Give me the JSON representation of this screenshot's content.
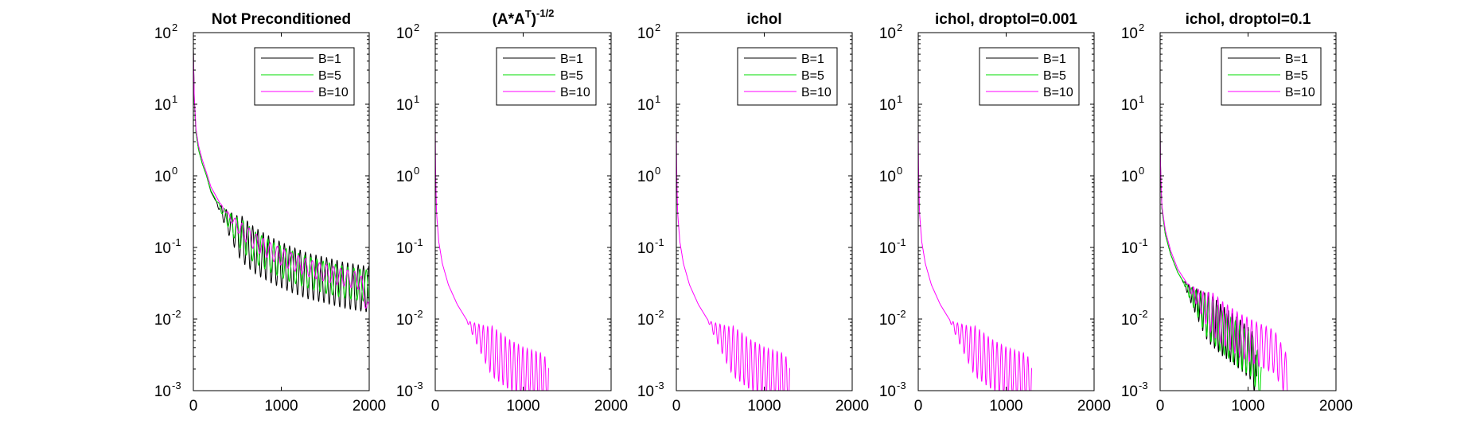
{
  "chart_data": [
    {
      "type": "line",
      "title": "Not Preconditioned",
      "title_sup": "",
      "yscale": "log",
      "xlim": [
        0,
        2000
      ],
      "ylim": [
        0.001,
        100
      ],
      "xticks": [
        0,
        1000,
        2000
      ],
      "xtick_labels": [
        "0",
        "1000",
        "2000"
      ],
      "ytick_exponents": [
        -3,
        -2,
        -1,
        0,
        1,
        2
      ],
      "ytick_labels": [
        "10",
        "10",
        "10",
        "10",
        "10",
        "10"
      ],
      "ytick_exp_labels": [
        "-3",
        "-2",
        "-1",
        "0",
        "1",
        "2"
      ],
      "legend": "top-right",
      "series": [
        {
          "name": "B=1",
          "color": "#000000",
          "points": [
            [
              0,
              60
            ],
            [
              10,
              12
            ],
            [
              30,
              4
            ],
            [
              60,
              2.3
            ],
            [
              100,
              1.5
            ],
            [
              150,
              1.0
            ],
            [
              200,
              0.6
            ],
            [
              300,
              0.35
            ],
            [
              400,
              0.22
            ],
            [
              500,
              0.15
            ],
            [
              700,
              0.09
            ],
            [
              900,
              0.065
            ],
            [
              1100,
              0.05
            ],
            [
              1300,
              0.04
            ],
            [
              1500,
              0.035
            ],
            [
              1700,
              0.03
            ],
            [
              1900,
              0.027
            ],
            [
              2000,
              0.026
            ]
          ],
          "osc": {
            "period": 60,
            "amp": 0.32,
            "start": 250
          }
        },
        {
          "name": "B=5",
          "color": "#00dd00",
          "points": [
            [
              0,
              60
            ],
            [
              10,
              12
            ],
            [
              30,
              4
            ],
            [
              60,
              2.3
            ],
            [
              100,
              1.5
            ],
            [
              150,
              1.0
            ],
            [
              200,
              0.62
            ],
            [
              300,
              0.37
            ],
            [
              400,
              0.24
            ],
            [
              500,
              0.17
            ],
            [
              700,
              0.1
            ],
            [
              900,
              0.072
            ],
            [
              1100,
              0.055
            ],
            [
              1300,
              0.045
            ],
            [
              1500,
              0.038
            ],
            [
              1700,
              0.033
            ],
            [
              1900,
              0.03
            ],
            [
              2000,
              0.029
            ]
          ],
          "osc": {
            "period": 70,
            "amp": 0.22,
            "start": 250
          }
        },
        {
          "name": "B=10",
          "color": "#ff00ff",
          "points": [
            [
              0,
              60
            ],
            [
              10,
              13
            ],
            [
              30,
              4.5
            ],
            [
              60,
              2.6
            ],
            [
              100,
              1.7
            ],
            [
              150,
              1.1
            ],
            [
              200,
              0.7
            ],
            [
              300,
              0.42
            ],
            [
              400,
              0.28
            ],
            [
              500,
              0.2
            ],
            [
              700,
              0.12
            ],
            [
              900,
              0.085
            ],
            [
              1100,
              0.065
            ],
            [
              1300,
              0.052
            ],
            [
              1500,
              0.044
            ],
            [
              1700,
              0.038
            ],
            [
              1900,
              0.034
            ],
            [
              2000,
              0.012
            ]
          ],
          "osc": {
            "period": 80,
            "amp": 0.12,
            "start": 300
          }
        }
      ]
    },
    {
      "type": "line",
      "title": "(A*A",
      "title_sup": "T",
      "title_after": ")",
      "title_sup2": "-1/2",
      "yscale": "log",
      "xlim": [
        0,
        2000
      ],
      "ylim": [
        0.001,
        100
      ],
      "xticks": [
        0,
        1000,
        2000
      ],
      "xtick_labels": [
        "0",
        "1000",
        "2000"
      ],
      "ytick_exponents": [
        -3,
        -2,
        -1,
        0,
        1,
        2
      ],
      "ytick_labels": [
        "10",
        "10",
        "10",
        "10",
        "10",
        "10"
      ],
      "ytick_exp_labels": [
        "-3",
        "-2",
        "-1",
        "0",
        "1",
        "2"
      ],
      "legend": "top-right",
      "series": [
        {
          "name": "B=1",
          "color": "#000000",
          "points": [],
          "osc": {
            "period": 0,
            "amp": 0,
            "start": 0
          }
        },
        {
          "name": "B=5",
          "color": "#00dd00",
          "points": [],
          "osc": {
            "period": 0,
            "amp": 0,
            "start": 0
          }
        },
        {
          "name": "B=10",
          "color": "#ff00ff",
          "points": [
            [
              0,
              5
            ],
            [
              5,
              1.0
            ],
            [
              15,
              0.3
            ],
            [
              40,
              0.12
            ],
            [
              80,
              0.06
            ],
            [
              150,
              0.03
            ],
            [
              250,
              0.016
            ],
            [
              400,
              0.008
            ],
            [
              600,
              0.004
            ],
            [
              800,
              0.0025
            ],
            [
              1000,
              0.0018
            ],
            [
              1200,
              0.0015
            ],
            [
              1290,
              0.0012
            ]
          ],
          "osc": {
            "period": 50,
            "amp": 0.35,
            "start": 350
          }
        }
      ]
    },
    {
      "type": "line",
      "title": "ichol",
      "title_sup": "",
      "yscale": "log",
      "xlim": [
        0,
        2000
      ],
      "ylim": [
        0.001,
        100
      ],
      "xticks": [
        0,
        1000,
        2000
      ],
      "xtick_labels": [
        "0",
        "1000",
        "2000"
      ],
      "ytick_exponents": [
        -3,
        -2,
        -1,
        0,
        1,
        2
      ],
      "ytick_labels": [
        "10",
        "10",
        "10",
        "10",
        "10",
        "10"
      ],
      "ytick_exp_labels": [
        "-3",
        "-2",
        "-1",
        "0",
        "1",
        "2"
      ],
      "legend": "top-right",
      "series": [
        {
          "name": "B=1",
          "color": "#000000",
          "points": [],
          "osc": {
            "period": 0,
            "amp": 0,
            "start": 0
          }
        },
        {
          "name": "B=5",
          "color": "#00dd00",
          "points": [],
          "osc": {
            "period": 0,
            "amp": 0,
            "start": 0
          }
        },
        {
          "name": "B=10",
          "color": "#ff00ff",
          "points": [
            [
              0,
              5
            ],
            [
              5,
              1.0
            ],
            [
              15,
              0.3
            ],
            [
              40,
              0.12
            ],
            [
              80,
              0.06
            ],
            [
              150,
              0.03
            ],
            [
              250,
              0.016
            ],
            [
              400,
              0.008
            ],
            [
              600,
              0.004
            ],
            [
              800,
              0.0025
            ],
            [
              1000,
              0.0018
            ],
            [
              1200,
              0.0015
            ],
            [
              1290,
              0.0012
            ]
          ],
          "osc": {
            "period": 50,
            "amp": 0.35,
            "start": 350
          }
        }
      ]
    },
    {
      "type": "line",
      "title": "ichol, droptol=0.001",
      "title_sup": "",
      "yscale": "log",
      "xlim": [
        0,
        2000
      ],
      "ylim": [
        0.001,
        100
      ],
      "xticks": [
        0,
        1000,
        2000
      ],
      "xtick_labels": [
        "0",
        "1000",
        "2000"
      ],
      "ytick_exponents": [
        -3,
        -2,
        -1,
        0,
        1,
        2
      ],
      "ytick_labels": [
        "10",
        "10",
        "10",
        "10",
        "10",
        "10"
      ],
      "ytick_exp_labels": [
        "-3",
        "-2",
        "-1",
        "0",
        "1",
        "2"
      ],
      "legend": "top-right",
      "series": [
        {
          "name": "B=1",
          "color": "#000000",
          "points": [],
          "osc": {
            "period": 0,
            "amp": 0,
            "start": 0
          }
        },
        {
          "name": "B=5",
          "color": "#00dd00",
          "points": [],
          "osc": {
            "period": 0,
            "amp": 0,
            "start": 0
          }
        },
        {
          "name": "B=10",
          "color": "#ff00ff",
          "points": [
            [
              0,
              5
            ],
            [
              5,
              1.0
            ],
            [
              15,
              0.3
            ],
            [
              40,
              0.12
            ],
            [
              80,
              0.06
            ],
            [
              150,
              0.03
            ],
            [
              250,
              0.016
            ],
            [
              400,
              0.008
            ],
            [
              600,
              0.004
            ],
            [
              800,
              0.0025
            ],
            [
              1000,
              0.0018
            ],
            [
              1200,
              0.0015
            ],
            [
              1290,
              0.0012
            ]
          ],
          "osc": {
            "period": 50,
            "amp": 0.35,
            "start": 350
          }
        }
      ]
    },
    {
      "type": "line",
      "title": "ichol, droptol=0.1",
      "title_sup": "",
      "yscale": "log",
      "xlim": [
        0,
        2000
      ],
      "ylim": [
        0.001,
        100
      ],
      "xticks": [
        0,
        1000,
        2000
      ],
      "xtick_labels": [
        "0",
        "1000",
        "2000"
      ],
      "ytick_exponents": [
        -3,
        -2,
        -1,
        0,
        1,
        2
      ],
      "ytick_labels": [
        "10",
        "10",
        "10",
        "10",
        "10",
        "10"
      ],
      "ytick_exp_labels": [
        "-3",
        "-2",
        "-1",
        "0",
        "1",
        "2"
      ],
      "legend": "top-right",
      "series": [
        {
          "name": "B=1",
          "color": "#000000",
          "points": [
            [
              0,
              5
            ],
            [
              5,
              1.2
            ],
            [
              20,
              0.35
            ],
            [
              60,
              0.15
            ],
            [
              120,
              0.08
            ],
            [
              200,
              0.045
            ],
            [
              350,
              0.022
            ],
            [
              500,
              0.012
            ],
            [
              700,
              0.007
            ],
            [
              900,
              0.0045
            ],
            [
              1050,
              0.003
            ],
            [
              1100,
              0.0012
            ]
          ],
          "osc": {
            "period": 45,
            "amp": 0.35,
            "start": 250
          }
        },
        {
          "name": "B=5",
          "color": "#00dd00",
          "points": [
            [
              0,
              5
            ],
            [
              5,
              1.2
            ],
            [
              20,
              0.35
            ],
            [
              60,
              0.15
            ],
            [
              120,
              0.08
            ],
            [
              200,
              0.045
            ],
            [
              350,
              0.022
            ],
            [
              500,
              0.012
            ],
            [
              700,
              0.0068
            ],
            [
              900,
              0.0042
            ],
            [
              1050,
              0.003
            ],
            [
              1150,
              0.0012
            ]
          ],
          "osc": {
            "period": 50,
            "amp": 0.3,
            "start": 250
          }
        },
        {
          "name": "B=10",
          "color": "#ff00ff",
          "points": [
            [
              0,
              5
            ],
            [
              5,
              1.3
            ],
            [
              20,
              0.38
            ],
            [
              60,
              0.17
            ],
            [
              120,
              0.09
            ],
            [
              200,
              0.05
            ],
            [
              350,
              0.026
            ],
            [
              500,
              0.015
            ],
            [
              700,
              0.009
            ],
            [
              900,
              0.006
            ],
            [
              1100,
              0.0045
            ],
            [
              1300,
              0.0035
            ],
            [
              1450,
              0.0015
            ]
          ],
          "osc": {
            "period": 55,
            "amp": 0.3,
            "start": 300
          }
        }
      ]
    }
  ]
}
